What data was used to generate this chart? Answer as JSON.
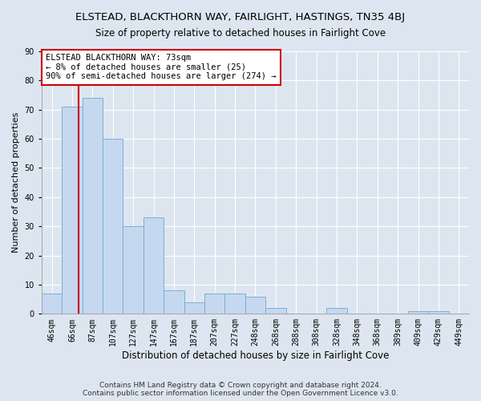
{
  "title": "ELSTEAD, BLACKTHORN WAY, FAIRLIGHT, HASTINGS, TN35 4BJ",
  "subtitle": "Size of property relative to detached houses in Fairlight Cove",
  "xlabel": "Distribution of detached houses by size in Fairlight Cove",
  "ylabel": "Number of detached properties",
  "categories": [
    "46sqm",
    "66sqm",
    "87sqm",
    "107sqm",
    "127sqm",
    "147sqm",
    "167sqm",
    "187sqm",
    "207sqm",
    "227sqm",
    "248sqm",
    "268sqm",
    "288sqm",
    "308sqm",
    "328sqm",
    "348sqm",
    "368sqm",
    "389sqm",
    "409sqm",
    "429sqm",
    "449sqm"
  ],
  "values": [
    7,
    71,
    74,
    60,
    30,
    33,
    8,
    4,
    7,
    7,
    6,
    2,
    0,
    0,
    2,
    0,
    0,
    0,
    1,
    1,
    0
  ],
  "bar_color": "#c5d8f0",
  "bar_edge_color": "#7bafd4",
  "marker_line_color": "#cc0000",
  "annotation_line1": "ELSTEAD BLACKTHORN WAY: 73sqm",
  "annotation_line2": "← 8% of detached houses are smaller (25)",
  "annotation_line3": "90% of semi-detached houses are larger (274) →",
  "annotation_box_color": "#ffffff",
  "annotation_box_edge_color": "#cc0000",
  "ylim": [
    0,
    90
  ],
  "yticks": [
    0,
    10,
    20,
    30,
    40,
    50,
    60,
    70,
    80,
    90
  ],
  "bg_color": "#dde6f0",
  "plot_bg_color": "#dde6f0",
  "grid_color": "#ffffff",
  "footer_line1": "Contains HM Land Registry data © Crown copyright and database right 2024.",
  "footer_line2": "Contains public sector information licensed under the Open Government Licence v3.0.",
  "title_fontsize": 9.5,
  "subtitle_fontsize": 8.5,
  "xlabel_fontsize": 8.5,
  "ylabel_fontsize": 8,
  "tick_fontsize": 7,
  "annotation_fontsize": 7.5,
  "footer_fontsize": 6.5
}
